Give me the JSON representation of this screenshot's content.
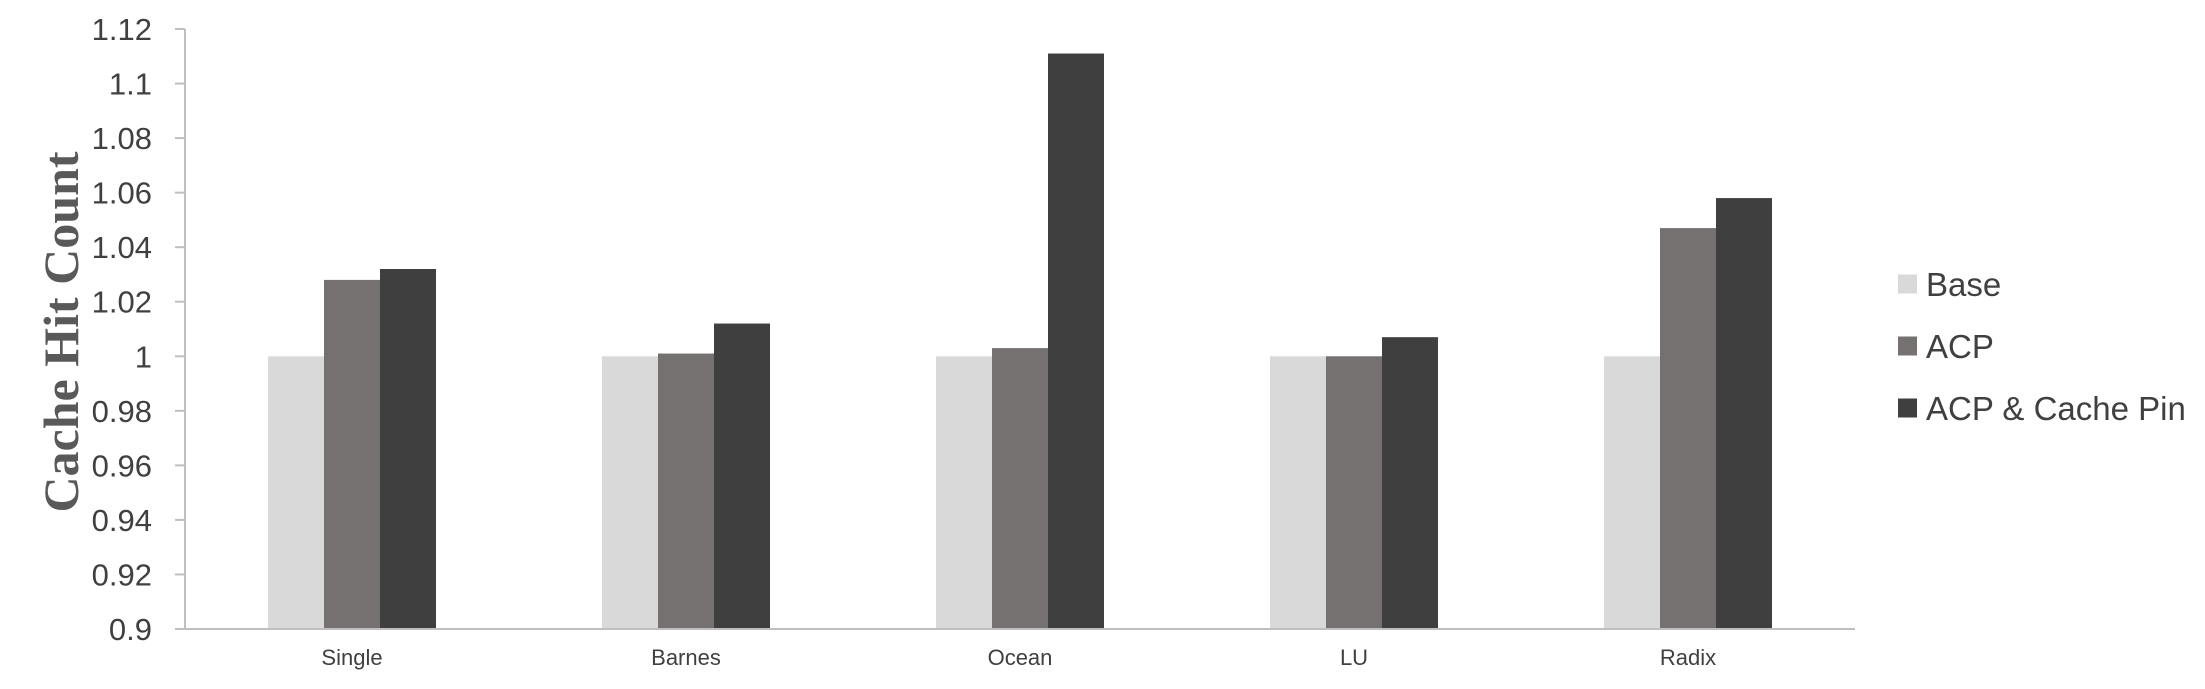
{
  "chart_data": {
    "type": "bar",
    "title": "",
    "xlabel": "",
    "ylabel": "Cache Hit Count",
    "ylim": [
      0.9,
      1.12
    ],
    "yticks": [
      "0.9",
      "0.92",
      "0.94",
      "0.96",
      "0.98",
      "1",
      "1.02",
      "1.04",
      "1.06",
      "1.08",
      "1.1",
      "1.12"
    ],
    "categories": [
      "Single",
      "Barnes",
      "Ocean",
      "LU",
      "Radix"
    ],
    "series": [
      {
        "name": "Base",
        "color": "#d9d9d9",
        "values": [
          1.0,
          1.0,
          1.0,
          1.0,
          1.0
        ]
      },
      {
        "name": "ACP",
        "color": "#767171",
        "values": [
          1.028,
          1.001,
          1.003,
          1.0,
          1.047
        ]
      },
      {
        "name": "ACP & Cache Pin",
        "color": "#3f3f3f",
        "values": [
          1.032,
          1.012,
          1.111,
          1.007,
          1.058
        ]
      }
    ],
    "grid": false,
    "legend_position": "right"
  }
}
